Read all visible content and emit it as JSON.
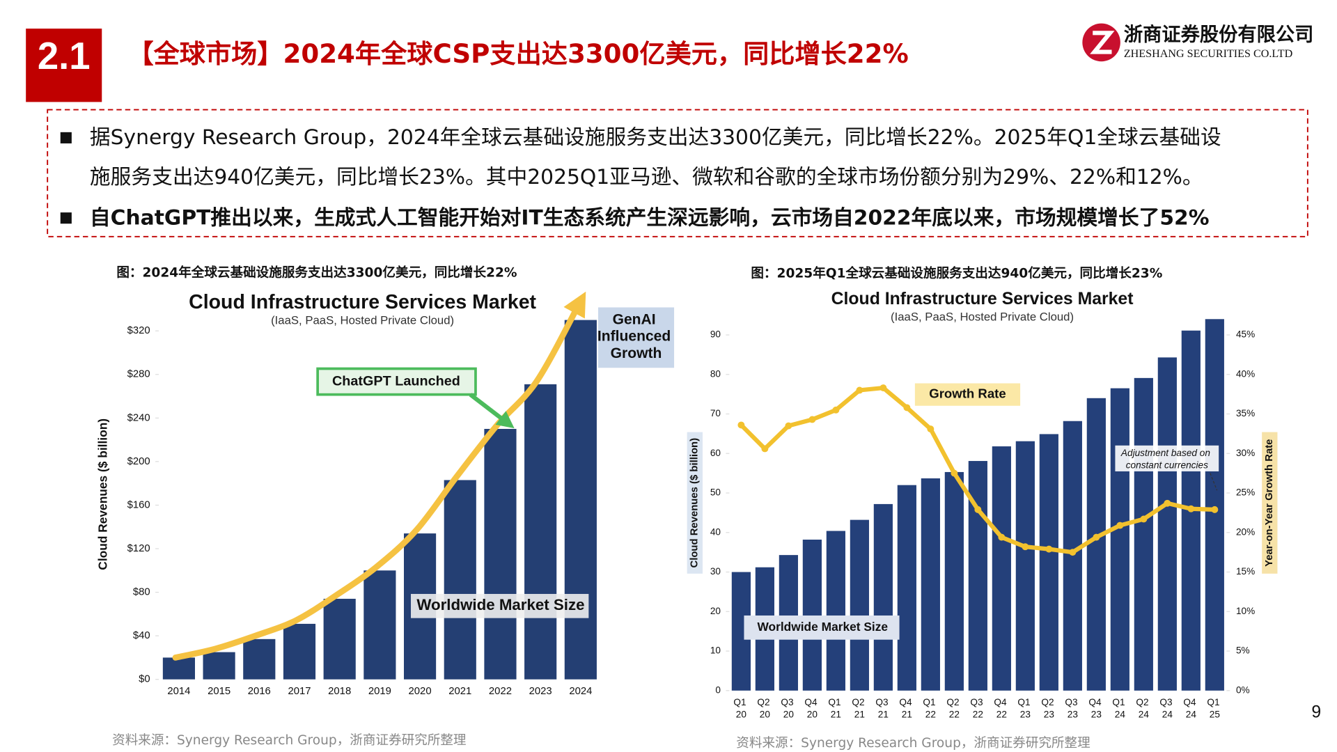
{
  "header": {
    "section": "2.1",
    "title": "【全球市场】2024年全球CSP支出达3300亿美元，同比增长22%",
    "logo_cn": "浙商证券股份有限公司",
    "logo_en": "ZHESHANG SECURITIES CO.LTD"
  },
  "bullets": [
    [
      "据Synergy Research Group，2024年全球云基础设施服务支出达3300亿美元，同比增长22%。2025年Q1全球云基础设",
      "施服务支出达940亿美元，同比增长23%。其中2025Q1亚马逊、微软和谷歌的全球市场份额分别为29%、22%和12%。"
    ],
    [
      "自ChatGPT推出以来，生成式人工智能开始对IT生态系统产生深远影响，云市场自2022年底以来，市场规模增长了52%"
    ]
  ],
  "page_number": "9",
  "chart_data": [
    {
      "type": "bar",
      "caption": "图：2024年全球云基础设施服务支出达3300亿美元，同比增长22%",
      "title": "Cloud Infrastructure Services Market",
      "subtitle": "(IaaS, PaaS, Hosted Private Cloud)",
      "y_label": "Cloud Revenues ($ billion)",
      "categories": [
        "2014",
        "2015",
        "2016",
        "2017",
        "2018",
        "2019",
        "2020",
        "2021",
        "2022",
        "2023",
        "2024"
      ],
      "series": [
        {
          "name": "Worldwide Market Size",
          "color": "#243f73",
          "values": [
            20,
            25,
            37,
            51,
            74,
            100,
            134,
            183,
            230,
            271,
            330
          ]
        }
      ],
      "ylim": [
        0,
        340
      ],
      "yticks": [
        {
          "value": 0,
          "label": "$0"
        },
        {
          "value": 40,
          "label": "$40"
        },
        {
          "value": 80,
          "label": "$80"
        },
        {
          "value": 120,
          "label": "$120"
        },
        {
          "value": 160,
          "label": "$160"
        },
        {
          "value": 200,
          "label": "$200"
        },
        {
          "value": 240,
          "label": "$240"
        },
        {
          "value": 280,
          "label": "$280"
        },
        {
          "value": 320,
          "label": "$320"
        }
      ],
      "annotations": [
        "ChatGPT Launched",
        "GenAI Influenced Growth"
      ],
      "source": "资料来源：Synergy Research Group，浙商证券研究所整理"
    },
    {
      "type": "combo",
      "caption": "图：2025年Q1全球云基础设施服务支出达940亿美元，同比增长23%",
      "title": "Cloud Infrastructure Services Market",
      "subtitle": "(IaaS, PaaS, Hosted Private Cloud)",
      "y_label": "Cloud Revenues ($ billion)",
      "y2_label": "Year-on-Year Growth Rate",
      "categories": [
        "Q1 20",
        "Q2 20",
        "Q3 20",
        "Q4 20",
        "Q1 21",
        "Q2 21",
        "Q3 21",
        "Q4 21",
        "Q1 22",
        "Q2 22",
        "Q3 22",
        "Q4 22",
        "Q1 23",
        "Q2 23",
        "Q3 23",
        "Q4 23",
        "Q1 24",
        "Q2 24",
        "Q3 24",
        "Q4 24",
        "Q1 25"
      ],
      "series": [
        {
          "name": "Worldwide Market Size",
          "color": "#24407a",
          "values": [
            30,
            31.2,
            34.3,
            38.2,
            40.4,
            43.2,
            47.2,
            52,
            53.7,
            55.3,
            58.1,
            61.8,
            63.1,
            64.9,
            68.2,
            74,
            76.5,
            79.1,
            84.3,
            91.1,
            94
          ]
        },
        {
          "name": "Growth Rate",
          "color": "#f2c12e",
          "axis": "y2",
          "values": [
            33.6,
            30.6,
            33.5,
            34.3,
            35.5,
            38,
            38.3,
            35.8,
            33.1,
            27.5,
            22.9,
            19.4,
            18.2,
            17.9,
            17.5,
            19.4,
            20.9,
            21.7,
            23.7,
            23,
            22.9
          ]
        }
      ],
      "ylim": [
        0,
        95
      ],
      "yticks": [
        0,
        10,
        20,
        30,
        40,
        50,
        60,
        70,
        80,
        90
      ],
      "y2lim": [
        0,
        47.5
      ],
      "y2ticks": [
        {
          "value": 0,
          "label": "0%"
        },
        {
          "value": 5,
          "label": "5%"
        },
        {
          "value": 10,
          "label": "10%"
        },
        {
          "value": 15,
          "label": "15%"
        },
        {
          "value": 20,
          "label": "20%"
        },
        {
          "value": 25,
          "label": "25%"
        },
        {
          "value": 30,
          "label": "30%"
        },
        {
          "value": 35,
          "label": "35%"
        },
        {
          "value": 40,
          "label": "40%"
        },
        {
          "value": 45,
          "label": "45%"
        }
      ],
      "annotations": [
        "Adjustment based on constant currencies"
      ],
      "source": "资料来源：Synergy Research Group，浙商证券研究所整理"
    }
  ]
}
